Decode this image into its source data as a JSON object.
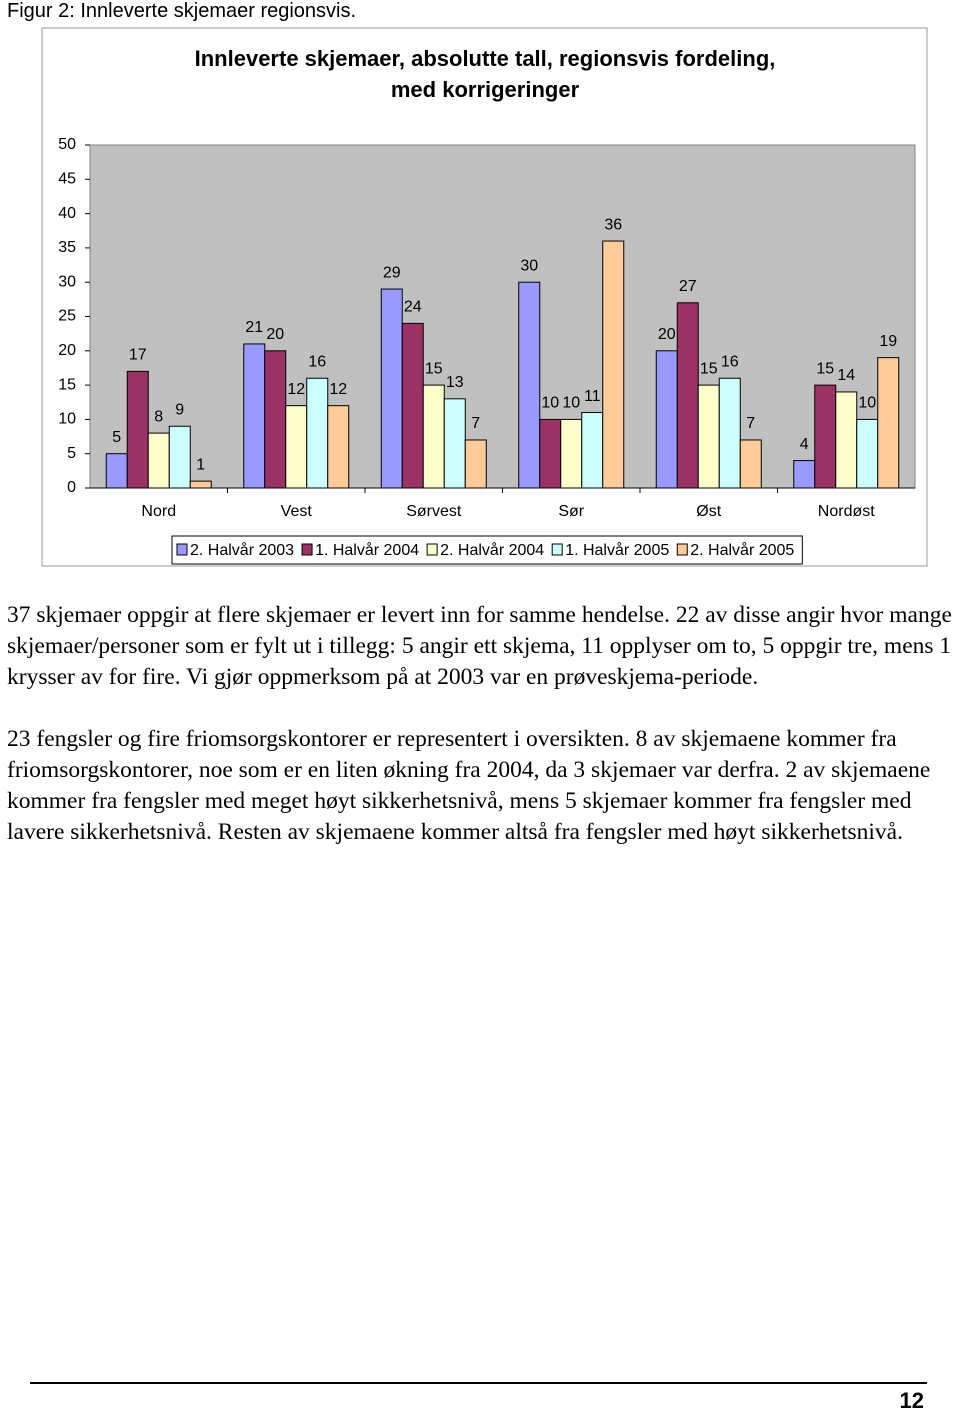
{
  "caption": "Figur 2: Innleverte skjemaer regionsvis.",
  "chart_data": {
    "type": "bar",
    "title": [
      "Innleverte skjemaer, absolutte tall, regionsvis fordeling,",
      "med korrigeringer"
    ],
    "categories": [
      "Nord",
      "Vest",
      "Sørvest",
      "Sør",
      "Øst",
      "Nordøst"
    ],
    "series": [
      {
        "name": "2. Halvår 2003",
        "color": "#9999ff",
        "values": [
          5,
          21,
          29,
          30,
          20,
          4
        ]
      },
      {
        "name": "1. Halvår 2004",
        "color": "#993366",
        "values": [
          17,
          20,
          24,
          10,
          27,
          15
        ]
      },
      {
        "name": "2. Halvår 2004",
        "color": "#ffffcc",
        "values": [
          8,
          12,
          15,
          10,
          15,
          14
        ]
      },
      {
        "name": "1. Halvår 2005",
        "color": "#ccffff",
        "values": [
          9,
          16,
          13,
          11,
          16,
          10
        ]
      },
      {
        "name": "2. Halvår 2005",
        "color": "#ffcc99",
        "values": [
          1,
          12,
          7,
          36,
          7,
          19
        ]
      }
    ],
    "ylim": [
      0,
      50
    ],
    "yticks": [
      0,
      5,
      10,
      15,
      20,
      25,
      30,
      35,
      40,
      45,
      50
    ],
    "grid": false,
    "legend": "bottom",
    "plot_background": "#c0c0c0"
  },
  "paragraphs": [
    "37 skjemaer oppgir at flere skjemaer er levert inn for samme hendelse. 22 av disse angir hvor mange skjemaer/personer som er fylt ut i tillegg: 5 angir ett skjema, 11 opplyser om to, 5 oppgir tre, mens 1 krysser av for fire. Vi gjør oppmerksom på at 2003 var en prøveskjema-periode.",
    "23 fengsler og fire friomsorgskontorer er representert i oversikten. 8 av skjemaene kommer fra friomsorgskontorer, noe som er en liten økning fra 2004, da 3 skjemaer var derfra. 2 av skjemaene kommer fra fengsler med meget høyt sikkerhetsnivå, mens 5 skjemaer kommer fra fengsler med lavere sikkerhetsnivå. Resten av skjemaene kommer altså fra fengsler med høyt sikkerhetsnivå."
  ],
  "page_number": "12"
}
